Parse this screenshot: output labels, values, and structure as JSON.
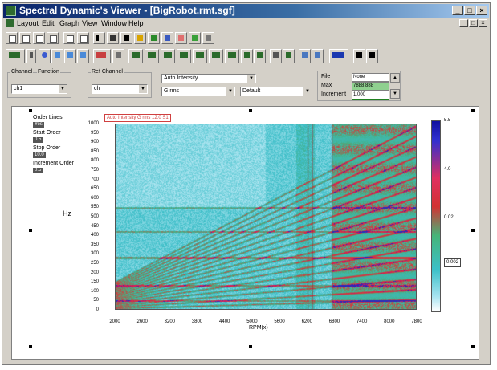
{
  "window": {
    "title": "Spectral Dynamic's Viewer - [BigRobot.rmt.sgf]",
    "controls": [
      "_",
      "□",
      "×"
    ]
  },
  "menu": {
    "items": [
      "Layout",
      "Edit",
      "Graph",
      "View",
      "Window",
      "Help"
    ],
    "mdi_controls": [
      "_",
      "□",
      "×"
    ]
  },
  "params": {
    "channel_label": "Channel",
    "function_label": "Function",
    "ref_channel_label": "Ref Channel",
    "channel_value": "ch1",
    "ref_channel_value": "ch",
    "function_value": "Auto Intensity",
    "units_value": "G rms",
    "window_value": "Default",
    "file_label": "File",
    "file_value": "None",
    "max_label": "Max",
    "max_value": "7888.888",
    "increment_label": "Increment",
    "increment_value": "1.000"
  },
  "chart_data": {
    "type": "heatmap",
    "annotation": "Auto Intensity G rms 12.0 S1",
    "xlabel": "RPM(x)",
    "ylabel": "Hz",
    "x_ticks": [
      "2000",
      "2600",
      "3200",
      "3800",
      "4400",
      "5000",
      "5600",
      "6200",
      "6800",
      "7400",
      "8000",
      "7800"
    ],
    "y_ticks": [
      "1000",
      "950",
      "900",
      "850",
      "800",
      "750",
      "700",
      "650",
      "600",
      "550",
      "500",
      "450",
      "400",
      "350",
      "300",
      "250",
      "200",
      "150",
      "100",
      "50",
      "0"
    ],
    "xlim": [
      2000,
      7800
    ],
    "ylim": [
      0,
      1000
    ],
    "colorbar_ticks": [
      "5.5",
      "4.0",
      "0.02",
      "0.002"
    ],
    "colorbar_readout": "0.002",
    "colors": [
      "#ffffff",
      "#a6e3f0",
      "#3cc0c8",
      "#46b478",
      "#d23232",
      "#e0106a",
      "#2020c0"
    ],
    "legend": {
      "order_lines_label": "Order Lines",
      "order_lines_btn": "Yes",
      "start_order_label": "Start Order",
      "start_order_btn": "0.5",
      "stop_order_label": "Stop Order",
      "stop_order_btn": "10.0",
      "increment_order_label": "Increment Order",
      "increment_order_btn": "0.5"
    }
  }
}
